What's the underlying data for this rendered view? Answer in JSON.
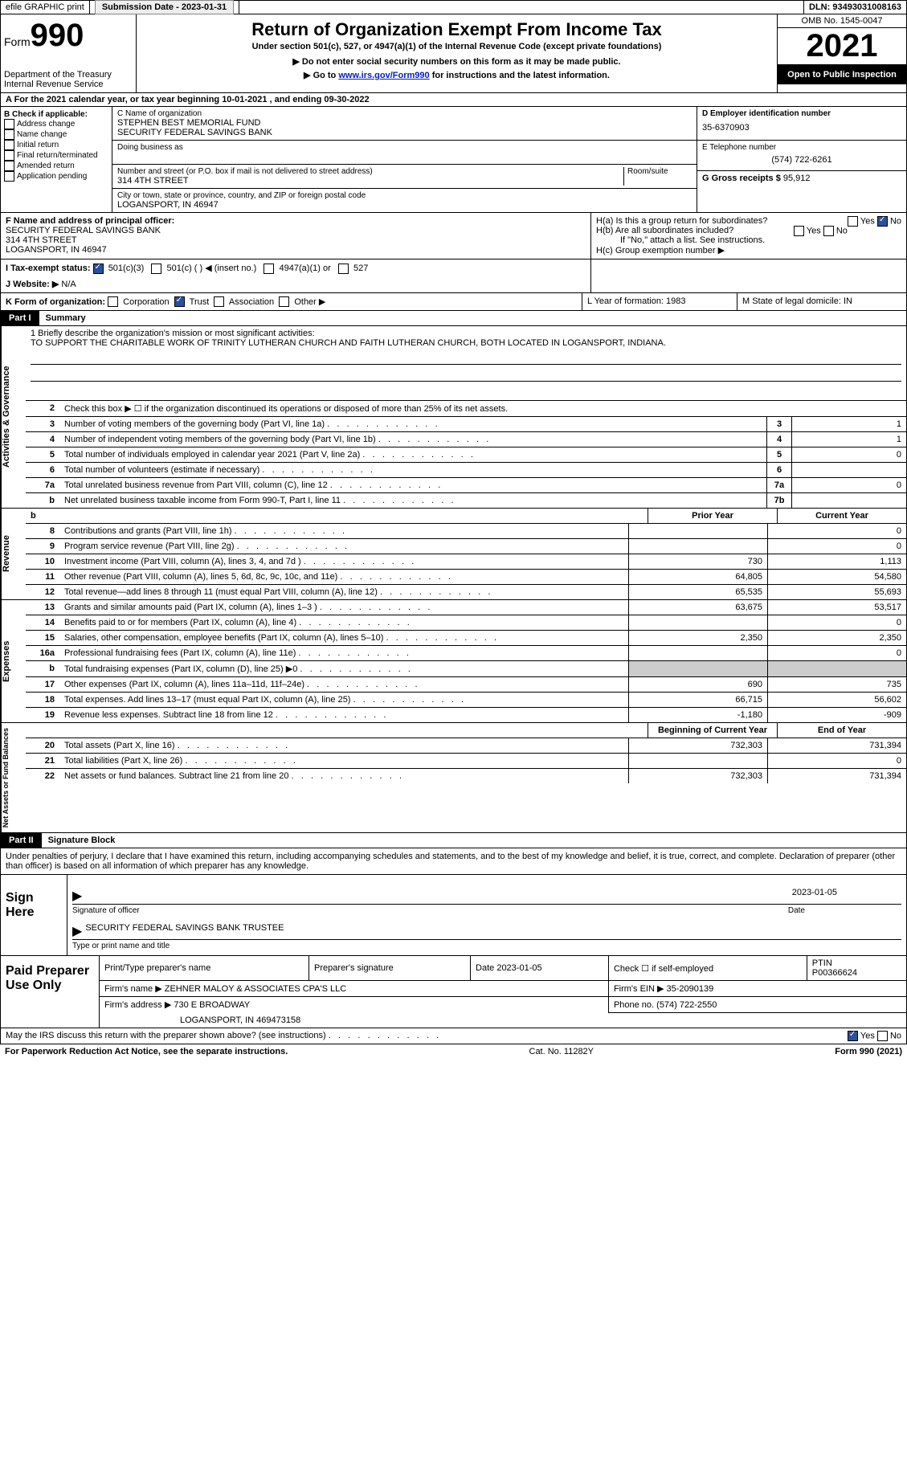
{
  "topbar": {
    "efile": "efile GRAPHIC print",
    "submission_label": "Submission Date - 2023-01-31",
    "dln_label": "DLN: 93493031008163"
  },
  "header": {
    "form_label": "Form",
    "form_number": "990",
    "dept": "Department of the Treasury Internal Revenue Service",
    "title": "Return of Organization Exempt From Income Tax",
    "subtitle": "Under section 501(c), 527, or 4947(a)(1) of the Internal Revenue Code (except private foundations)",
    "warn": "▶ Do not enter social security numbers on this form as it may be made public.",
    "goto_prefix": "▶ Go to ",
    "goto_link": "www.irs.gov/Form990",
    "goto_suffix": " for instructions and the latest information.",
    "omb": "OMB No. 1545-0047",
    "year": "2021",
    "open": "Open to Public Inspection"
  },
  "period": "A For the 2021 calendar year, or tax year beginning 10-01-2021   , and ending 09-30-2022",
  "B": {
    "label": "B Check if applicable:",
    "opts": [
      "Address change",
      "Name change",
      "Initial return",
      "Final return/terminated",
      "Amended return",
      "Application pending"
    ]
  },
  "C": {
    "name_label": "C Name of organization",
    "name1": "STEPHEN BEST MEMORIAL FUND",
    "name2": "SECURITY FEDERAL SAVINGS BANK",
    "dba_label": "Doing business as",
    "addr_label": "Number and street (or P.O. box if mail is not delivered to street address)",
    "room": "Room/suite",
    "addr": "314 4TH STREET",
    "city_label": "City or town, state or province, country, and ZIP or foreign postal code",
    "city": "LOGANSPORT, IN  46947"
  },
  "D": {
    "label": "D Employer identification number",
    "val": "35-6370903"
  },
  "E": {
    "label": "E Telephone number",
    "val": "(574) 722-6261"
  },
  "G": {
    "label": "G Gross receipts $",
    "val": "95,912"
  },
  "F": {
    "label": "F  Name and address of principal officer:",
    "name": "SECURITY FEDERAL SAVINGS BANK",
    "addr": "314 4TH STREET",
    "city": "LOGANSPORT, IN  46947"
  },
  "H": {
    "a": "H(a)  Is this a group return for subordinates?",
    "b": "H(b)  Are all subordinates included?",
    "bnote": "If \"No,\" attach a list. See instructions.",
    "c": "H(c)  Group exemption number ▶",
    "yes": "Yes",
    "no": "No"
  },
  "I": {
    "label": "I  Tax-exempt status:",
    "opts": [
      "501(c)(3)",
      "501(c) (  ) ◀ (insert no.)",
      "4947(a)(1) or",
      "527"
    ]
  },
  "J": {
    "label": "J  Website: ▶",
    "val": "N/A"
  },
  "K": {
    "label": "K Form of organization:",
    "opts": [
      "Corporation",
      "Trust",
      "Association",
      "Other ▶"
    ]
  },
  "L": {
    "label": "L Year of formation: 1983"
  },
  "M": {
    "label": "M State of legal domicile: IN"
  },
  "part1": {
    "num": "Part I",
    "title": "Summary"
  },
  "mission": {
    "label": "1   Briefly describe the organization's mission or most significant activities:",
    "text": "TO SUPPORT THE CHARITABLE WORK OF TRINITY LUTHERAN CHURCH AND FAITH LUTHERAN CHURCH, BOTH LOCATED IN LOGANSPORT, INDIANA."
  },
  "line2": "Check this box ▶ ☐  if the organization discontinued its operations or disposed of more than 25% of its net assets.",
  "sideA": "Activities & Governance",
  "govRows": [
    {
      "n": "3",
      "d": "Number of voting members of the governing body (Part VI, line 1a)",
      "b": "3",
      "v": "1"
    },
    {
      "n": "4",
      "d": "Number of independent voting members of the governing body (Part VI, line 1b)",
      "b": "4",
      "v": "1"
    },
    {
      "n": "5",
      "d": "Total number of individuals employed in calendar year 2021 (Part V, line 2a)",
      "b": "5",
      "v": "0"
    },
    {
      "n": "6",
      "d": "Total number of volunteers (estimate if necessary)",
      "b": "6",
      "v": ""
    },
    {
      "n": "7a",
      "d": "Total unrelated business revenue from Part VIII, column (C), line 12",
      "b": "7a",
      "v": "0"
    },
    {
      "n": "b",
      "d": "Net unrelated business taxable income from Form 990-T, Part I, line 11",
      "b": "7b",
      "v": ""
    }
  ],
  "colHeaders": {
    "prior": "Prior Year",
    "current": "Current Year",
    "boy": "Beginning of Current Year",
    "eoy": "End of Year"
  },
  "sideR": "Revenue",
  "revRows": [
    {
      "n": "8",
      "d": "Contributions and grants (Part VIII, line 1h)",
      "p": "",
      "c": "0"
    },
    {
      "n": "9",
      "d": "Program service revenue (Part VIII, line 2g)",
      "p": "",
      "c": "0"
    },
    {
      "n": "10",
      "d": "Investment income (Part VIII, column (A), lines 3, 4, and 7d )",
      "p": "730",
      "c": "1,113"
    },
    {
      "n": "11",
      "d": "Other revenue (Part VIII, column (A), lines 5, 6d, 8c, 9c, 10c, and 11e)",
      "p": "64,805",
      "c": "54,580"
    },
    {
      "n": "12",
      "d": "Total revenue—add lines 8 through 11 (must equal Part VIII, column (A), line 12)",
      "p": "65,535",
      "c": "55,693"
    }
  ],
  "sideE": "Expenses",
  "expRows": [
    {
      "n": "13",
      "d": "Grants and similar amounts paid (Part IX, column (A), lines 1–3 )",
      "p": "63,675",
      "c": "53,517"
    },
    {
      "n": "14",
      "d": "Benefits paid to or for members (Part IX, column (A), line 4)",
      "p": "",
      "c": "0"
    },
    {
      "n": "15",
      "d": "Salaries, other compensation, employee benefits (Part IX, column (A), lines 5–10)",
      "p": "2,350",
      "c": "2,350"
    },
    {
      "n": "16a",
      "d": "Professional fundraising fees (Part IX, column (A), line 11e)",
      "p": "",
      "c": "0"
    },
    {
      "n": "b",
      "d": "Total fundraising expenses (Part IX, column (D), line 25) ▶0",
      "p": "shade",
      "c": "shade"
    },
    {
      "n": "17",
      "d": "Other expenses (Part IX, column (A), lines 11a–11d, 11f–24e)",
      "p": "690",
      "c": "735"
    },
    {
      "n": "18",
      "d": "Total expenses. Add lines 13–17 (must equal Part IX, column (A), line 25)",
      "p": "66,715",
      "c": "56,602"
    },
    {
      "n": "19",
      "d": "Revenue less expenses. Subtract line 18 from line 12",
      "p": "-1,180",
      "c": "-909"
    }
  ],
  "sideN": "Net Assets or Fund Balances",
  "netRows": [
    {
      "n": "20",
      "d": "Total assets (Part X, line 16)",
      "p": "732,303",
      "c": "731,394"
    },
    {
      "n": "21",
      "d": "Total liabilities (Part X, line 26)",
      "p": "",
      "c": "0"
    },
    {
      "n": "22",
      "d": "Net assets or fund balances. Subtract line 21 from line 20",
      "p": "732,303",
      "c": "731,394"
    }
  ],
  "part2": {
    "num": "Part II",
    "title": "Signature Block"
  },
  "sigDecl": "Under penalties of perjury, I declare that I have examined this return, including accompanying schedules and statements, and to the best of my knowledge and belief, it is true, correct, and complete. Declaration of preparer (other than officer) is based on all information of which preparer has any knowledge.",
  "sign": {
    "here": "Sign Here",
    "sigofficer": "Signature of officer",
    "date": "Date",
    "sigdate": "2023-01-05",
    "typed": "SECURITY FEDERAL SAVINGS BANK  TRUSTEE",
    "typedlabel": "Type or print name and title"
  },
  "paid": {
    "label": "Paid Preparer Use Only",
    "h1": "Print/Type preparer's name",
    "h2": "Preparer's signature",
    "h3": "Date 2023-01-05",
    "h4_label": "Check ☐ if self-employed",
    "h5": "PTIN",
    "ptin": "P00366624",
    "firm_label": "Firm's name    ▶",
    "firm": "ZEHNER MALOY & ASSOCIATES CPA'S LLC",
    "ein_label": "Firm's EIN ▶",
    "ein": "35-2090139",
    "addr_label": "Firm's address ▶",
    "addr1": "730 E BROADWAY",
    "addr2": "LOGANSPORT, IN  469473158",
    "phone_label": "Phone no.",
    "phone": "(574) 722-2550"
  },
  "discuss": "May the IRS discuss this return with the preparer shown above? (see instructions)",
  "footer": {
    "pra": "For Paperwork Reduction Act Notice, see the separate instructions.",
    "cat": "Cat. No. 11282Y",
    "form": "Form 990 (2021)"
  }
}
